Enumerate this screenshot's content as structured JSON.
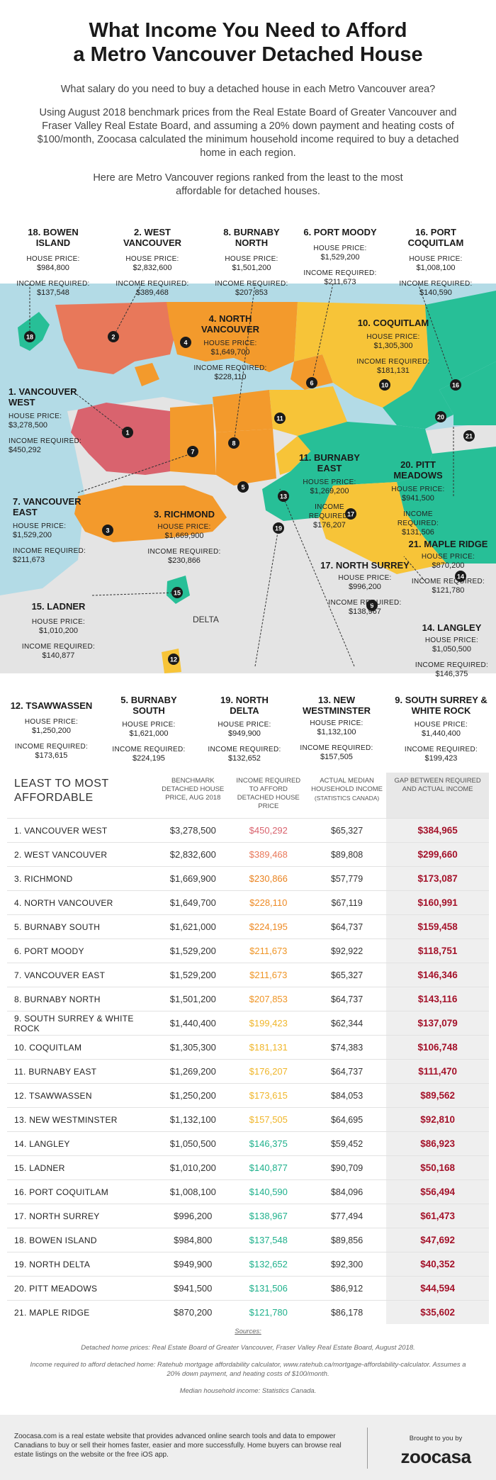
{
  "title_line1": "What Income You Need to Afford",
  "title_line2": "a Metro Vancouver Detached House",
  "subtitle": "What salary do you need to buy a detached house in each Metro Vancouver area?",
  "intro": "Using August 2018 benchmark prices from the Real Estate Board of Greater Vancouver and Fraser Valley Real Estate Board, and assuming a 20% down payment and heating costs of $100/month, Zoocasa calculated the minimum household income required to buy a detached home in each region.",
  "intro2": "Here are Metro Vancouver regions ranked from the least to the most affordable for detached houses.",
  "labels": {
    "house_price": "HOUSE PRICE:",
    "income_required": "INCOME REQUIRED:"
  },
  "map": {
    "delta_label": "DELTA",
    "regions": [
      {
        "rank": "18",
        "name": "18. BOWEN ISLAND",
        "price": "$984,800",
        "income": "$137,548"
      },
      {
        "rank": "2",
        "name": "2. WEST VANCOUVER",
        "price": "$2,832,600",
        "income": "$389,468"
      },
      {
        "rank": "8",
        "name": "8. BURNABY NORTH",
        "price": "$1,501,200",
        "income": "$207,853"
      },
      {
        "rank": "6",
        "name": "6. PORT MOODY",
        "price": "$1,529,200",
        "income": "$211,673"
      },
      {
        "rank": "16",
        "name": "16. PORT COQUITLAM",
        "price": "$1,008,100",
        "income": "$140,590"
      },
      {
        "rank": "4",
        "name": "4. NORTH VANCOUVER",
        "price": "$1,649,700",
        "income": "$228,110"
      },
      {
        "rank": "10",
        "name": "10. COQUITLAM",
        "price": "$1,305,300",
        "income": "$181,131"
      },
      {
        "rank": "1",
        "name": "1. VANCOUVER WEST",
        "price": "$3,278,500",
        "income": "$450,292"
      },
      {
        "rank": "11",
        "name": "11. BURNABY EAST",
        "price": "$1,269,200",
        "income": "$176,207"
      },
      {
        "rank": "20",
        "name": "20. PITT MEADOWS",
        "price": "$941,500",
        "income": "$131,506"
      },
      {
        "rank": "7",
        "name": "7. VANCOUVER EAST",
        "price": "$1,529,200",
        "income": "$211,673"
      },
      {
        "rank": "3",
        "name": "3. RICHMOND",
        "price": "$1,669,900",
        "income": "$230,866"
      },
      {
        "rank": "21",
        "name": "21. MAPLE RIDGE",
        "price": "$870,200",
        "income": "$121,780"
      },
      {
        "rank": "17",
        "name": "17. NORTH SURREY",
        "price": "$996,200",
        "income": "$138,967"
      },
      {
        "rank": "15",
        "name": "15. LADNER",
        "price": "$1,010,200",
        "income": "$140,877"
      },
      {
        "rank": "14",
        "name": "14. LANGLEY",
        "price": "$1,050,500",
        "income": "$146,375"
      },
      {
        "rank": "12",
        "name": "12. TSAWWASSEN",
        "price": "$1,250,200",
        "income": "$173,615"
      },
      {
        "rank": "5",
        "name": "5. BURNABY SOUTH",
        "price": "$1,621,000",
        "income": "$224,195"
      },
      {
        "rank": "19",
        "name": "19. NORTH DELTA",
        "price": "$949,900",
        "income": "$132,652"
      },
      {
        "rank": "13",
        "name": "13. NEW WESTMINSTER",
        "price": "$1,132,100",
        "income": "$157,505"
      },
      {
        "rank": "9",
        "name": "9. SOUTH SURREY & WHITE ROCK",
        "price": "$1,440,400",
        "income": "$199,423"
      }
    ]
  },
  "colors": {
    "water": "#b3dbe6",
    "land": "#e6e6e6",
    "red": "#d9636e",
    "coral": "#e8785a",
    "orange": "#f39a2c",
    "yellow": "#f7c438",
    "teal": "#27bf97",
    "gap": "#a4122a"
  },
  "chart_data": {
    "type": "table",
    "columns": [
      "LEAST TO MOST AFFORDABLE",
      "BENCHMARK DETACHED HOUSE PRICE, AUG 2018",
      "INCOME REQUIRED TO AFFORD DETACHED HOUSE PRICE",
      "ACTUAL MEDIAN HOUSEHOLD INCOME",
      "(STATISTICS CANADA)",
      "GAP BETWEEN REQUIRED AND ACTUAL INCOME"
    ],
    "rows": [
      {
        "name": "1. VANCOUVER WEST",
        "price": "$3,278,500",
        "income": "$450,292",
        "median": "$65,327",
        "gap": "$384,965",
        "color": "#d9636e"
      },
      {
        "name": "2. WEST VANCOUVER",
        "price": "$2,832,600",
        "income": "$389,468",
        "median": "$89,808",
        "gap": "$299,660",
        "color": "#e8785a"
      },
      {
        "name": "3. RICHMOND",
        "price": "$1,669,900",
        "income": "$230,866",
        "median": "$57,779",
        "gap": "$173,087",
        "color": "#e9821f"
      },
      {
        "name": "4. NORTH VANCOUVER",
        "price": "$1,649,700",
        "income": "$228,110",
        "median": "$67,119",
        "gap": "$160,991",
        "color": "#ee8a24"
      },
      {
        "name": "5. BURNABY SOUTH",
        "price": "$1,621,000",
        "income": "$224,195",
        "median": "$64,737",
        "gap": "$159,458",
        "color": "#ee8a24"
      },
      {
        "name": "6. PORT MOODY",
        "price": "$1,529,200",
        "income": "$211,673",
        "median": "$92,922",
        "gap": "$118,751",
        "color": "#ef9526"
      },
      {
        "name": "7. VANCOUVER EAST",
        "price": "$1,529,200",
        "income": "$211,673",
        "median": "$65,327",
        "gap": "$146,346",
        "color": "#ef9526"
      },
      {
        "name": "8. BURNABY NORTH",
        "price": "$1,501,200",
        "income": "$207,853",
        "median": "$64,737",
        "gap": "$143,116",
        "color": "#ef9526"
      },
      {
        "name": "9. SOUTH SURREY & WHITE ROCK",
        "price": "$1,440,400",
        "income": "$199,423",
        "median": "$62,344",
        "gap": "$137,079",
        "color": "#f0b62a"
      },
      {
        "name": "10. COQUITLAM",
        "price": "$1,305,300",
        "income": "$181,131",
        "median": "$74,383",
        "gap": "$106,748",
        "color": "#f0b62a"
      },
      {
        "name": "11. BURNABY EAST",
        "price": "$1,269,200",
        "income": "$176,207",
        "median": "$64,737",
        "gap": "$111,470",
        "color": "#f0b62a"
      },
      {
        "name": "12. TSAWWASSEN",
        "price": "$1,250,200",
        "income": "$173,615",
        "median": "$84,053",
        "gap": "$89,562",
        "color": "#f0b62a"
      },
      {
        "name": "13. NEW WESTMINSTER",
        "price": "$1,132,100",
        "income": "$157,505",
        "median": "$64,695",
        "gap": "$92,810",
        "color": "#f0b62a"
      },
      {
        "name": "14. LANGLEY",
        "price": "$1,050,500",
        "income": "$146,375",
        "median": "$59,452",
        "gap": "$86,923",
        "color": "#1fb18c"
      },
      {
        "name": "15. LADNER",
        "price": "$1,010,200",
        "income": "$140,877",
        "median": "$90,709",
        "gap": "$50,168",
        "color": "#1fb18c"
      },
      {
        "name": "16. PORT COQUITLAM",
        "price": "$1,008,100",
        "income": "$140,590",
        "median": "$84,096",
        "gap": "$56,494",
        "color": "#1fb18c"
      },
      {
        "name": "17. NORTH SURREY",
        "price": "$996,200",
        "income": "$138,967",
        "median": "$77,494",
        "gap": "$61,473",
        "color": "#1fb18c"
      },
      {
        "name": "18. BOWEN ISLAND",
        "price": "$984,800",
        "income": "$137,548",
        "median": "$89,856",
        "gap": "$47,692",
        "color": "#1fb18c"
      },
      {
        "name": "19. NORTH DELTA",
        "price": "$949,900",
        "income": "$132,652",
        "median": "$92,300",
        "gap": "$40,352",
        "color": "#1fb18c"
      },
      {
        "name": "20. PITT MEADOWS",
        "price": "$941,500",
        "income": "$131,506",
        "median": "$86,912",
        "gap": "$44,594",
        "color": "#1fb18c"
      },
      {
        "name": "21. MAPLE RIDGE",
        "price": "$870,200",
        "income": "$121,780",
        "median": "$86,178",
        "gap": "$35,602",
        "color": "#1fb18c"
      }
    ]
  },
  "sources": {
    "heading": "Sources:",
    "line1": "Detached home prices: Real Estate Board of Greater Vancouver, Fraser Valley Real Estate Board, August 2018.",
    "line2": "Income required to afford detached home: Ratehub mortgage affordability calculator, www.ratehub.ca/mortgage-affordability-calculator. Assumes a 20% down payment, and heating costs of $100/month.",
    "line3": "Median household income: Statistics Canada."
  },
  "footer": {
    "text": "Zoocasa.com is a real estate website that provides advanced online search tools and data to empower Canadians to buy or sell their homes faster, easier and more successfully. Home buyers can browse real estate listings on the website or the free iOS app.",
    "brought_by": "Brought to you by",
    "logo": "zoocasa"
  }
}
